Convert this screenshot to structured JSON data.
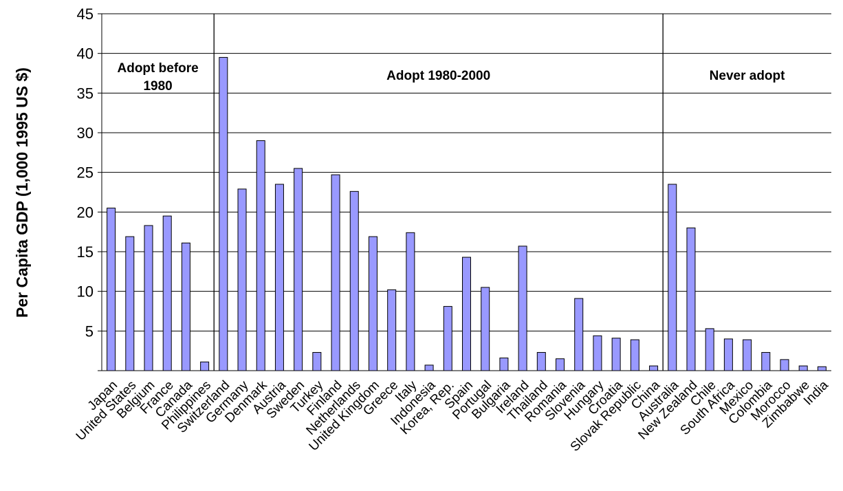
{
  "chart_data": {
    "type": "bar",
    "title": "",
    "xlabel": "",
    "ylabel": "Per Capita GDP (1,000 1995 US $)",
    "ylim": [
      0,
      45
    ],
    "yticks": [
      "5",
      "10",
      "15",
      "20",
      "25",
      "30",
      "35",
      "40",
      "45"
    ],
    "grid": true,
    "bar_color": "#9999ff",
    "categories": [
      "Japan",
      "United States",
      "Belgium",
      "France",
      "Canada",
      "Philippines",
      "Switzerland",
      "Germany",
      "Denmark",
      "Austria",
      "Sweden",
      "Turkey",
      "Finland",
      "Netherlands",
      "United Kingdom",
      "Greece",
      "Italy",
      "Indonesia",
      "Korea, Rep.",
      "Spain",
      "Portugal",
      "Bulgaria",
      "Ireland",
      "Thailand",
      "Romania",
      "Slovenia",
      "Hungary",
      "Croatia",
      "Slovak Republic",
      "China",
      "Australia",
      "New Zealand",
      "Chile",
      "South Africa",
      "Mexico",
      "Colombia",
      "Morocco",
      "Zimbabwe",
      "India"
    ],
    "values": [
      20.5,
      16.9,
      18.3,
      19.5,
      16.1,
      1.1,
      39.5,
      22.9,
      29.0,
      23.5,
      25.5,
      2.3,
      24.7,
      22.6,
      16.9,
      10.2,
      17.4,
      0.7,
      8.1,
      14.3,
      10.5,
      1.6,
      15.7,
      2.3,
      1.5,
      9.1,
      4.4,
      4.1,
      3.9,
      0.6,
      23.5,
      18.0,
      5.3,
      4.0,
      3.9,
      2.3,
      1.4,
      0.6,
      0.5
    ],
    "groups": [
      {
        "label": "Adopt before 1980",
        "lines": [
          "Adopt before",
          "1980"
        ],
        "start": 0,
        "end": 5
      },
      {
        "label": "Adopt 1980-2000",
        "lines": [
          "Adopt 1980-2000"
        ],
        "start": 6,
        "end": 29
      },
      {
        "label": "Never adopt",
        "lines": [
          "Never adopt"
        ],
        "start": 30,
        "end": 38
      }
    ]
  }
}
